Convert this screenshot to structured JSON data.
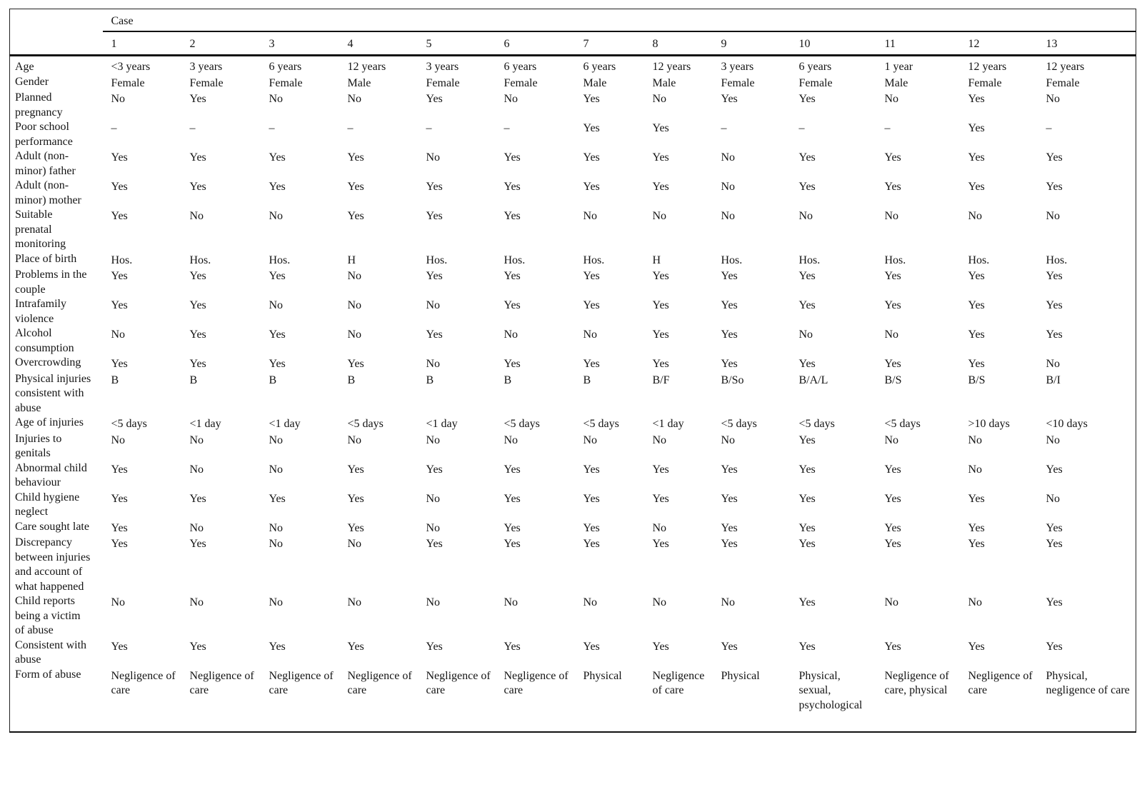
{
  "table": {
    "col_group_label": "Case",
    "case_numbers": [
      "1",
      "2",
      "3",
      "4",
      "5",
      "6",
      "7",
      "8",
      "9",
      "10",
      "11",
      "12",
      "13"
    ],
    "rows": [
      {
        "label": "Age",
        "values": [
          "<3 years",
          "3 years",
          "6 years",
          "12 years",
          "3 years",
          "6 years",
          "6 years",
          "12 years",
          "3 years",
          "6 years",
          "1 year",
          "12 years",
          "12 years"
        ]
      },
      {
        "label": "Gender",
        "values": [
          "Female",
          "Female",
          "Female",
          "Male",
          "Female",
          "Female",
          "Male",
          "Male",
          "Female",
          "Female",
          "Male",
          "Female",
          "Female"
        ]
      },
      {
        "label": "Planned pregnancy",
        "values": [
          "No",
          "Yes",
          "No",
          "No",
          "Yes",
          "No",
          "Yes",
          "No",
          "Yes",
          "Yes",
          "No",
          "Yes",
          "No"
        ]
      },
      {
        "label": "Poor school performance",
        "values": [
          "–",
          "–",
          "–",
          "–",
          "–",
          "–",
          "Yes",
          "Yes",
          "–",
          "–",
          "–",
          "Yes",
          "–"
        ]
      },
      {
        "label": "Adult (non-minor) father",
        "values": [
          "Yes",
          "Yes",
          "Yes",
          "Yes",
          "No",
          "Yes",
          "Yes",
          "Yes",
          "No",
          "Yes",
          "Yes",
          "Yes",
          "Yes"
        ]
      },
      {
        "label": "Adult (non-minor) mother",
        "values": [
          "Yes",
          "Yes",
          "Yes",
          "Yes",
          "Yes",
          "Yes",
          "Yes",
          "Yes",
          "No",
          "Yes",
          "Yes",
          "Yes",
          "Yes"
        ]
      },
      {
        "label": "Suitable prenatal monitoring",
        "values": [
          "Yes",
          "No",
          "No",
          "Yes",
          "Yes",
          "Yes",
          "No",
          "No",
          "No",
          "No",
          "No",
          "No",
          "No"
        ]
      },
      {
        "label": "Place of birth",
        "values": [
          "Hos.",
          "Hos.",
          "Hos.",
          "H",
          "Hos.",
          "Hos.",
          "Hos.",
          "H",
          "Hos.",
          "Hos.",
          "Hos.",
          "Hos.",
          "Hos."
        ]
      },
      {
        "label": "Problems in the couple",
        "values": [
          "Yes",
          "Yes",
          "Yes",
          "No",
          "Yes",
          "Yes",
          "Yes",
          "Yes",
          "Yes",
          "Yes",
          "Yes",
          "Yes",
          "Yes"
        ]
      },
      {
        "label": "Intrafamily violence",
        "values": [
          "Yes",
          "Yes",
          "No",
          "No",
          "No",
          "Yes",
          "Yes",
          "Yes",
          "Yes",
          "Yes",
          "Yes",
          "Yes",
          "Yes"
        ]
      },
      {
        "label": "Alcohol consumption",
        "values": [
          "No",
          "Yes",
          "Yes",
          "No",
          "Yes",
          "No",
          "No",
          "Yes",
          "Yes",
          "No",
          "No",
          "Yes",
          "Yes"
        ]
      },
      {
        "label": "Overcrowding",
        "values": [
          "Yes",
          "Yes",
          "Yes",
          "Yes",
          "No",
          "Yes",
          "Yes",
          "Yes",
          "Yes",
          "Yes",
          "Yes",
          "Yes",
          "No"
        ]
      },
      {
        "label": "Physical injuries consistent with abuse",
        "values": [
          "B",
          "B",
          "B",
          "B",
          "B",
          "B",
          "B",
          "B/F",
          "B/So",
          "B/A/L",
          "B/S",
          "B/S",
          "B/I"
        ]
      },
      {
        "label": "Age of injuries",
        "values": [
          "<5 days",
          "<1 day",
          "<1 day",
          "<5 days",
          "<1 day",
          "<5 days",
          "<5 days",
          "<1 day",
          "<5 days",
          "<5 days",
          "<5 days",
          ">10 days",
          "<10 days"
        ]
      },
      {
        "label": "Injuries to genitals",
        "values": [
          "No",
          "No",
          "No",
          "No",
          "No",
          "No",
          "No",
          "No",
          "No",
          "Yes",
          "No",
          "No",
          "No"
        ]
      },
      {
        "label": "Abnormal child behaviour",
        "values": [
          "Yes",
          "No",
          "No",
          "Yes",
          "Yes",
          "Yes",
          "Yes",
          "Yes",
          "Yes",
          "Yes",
          "Yes",
          "No",
          "Yes"
        ]
      },
      {
        "label": "Child hygiene neglect",
        "values": [
          "Yes",
          "Yes",
          "Yes",
          "Yes",
          "No",
          "Yes",
          "Yes",
          "Yes",
          "Yes",
          "Yes",
          "Yes",
          "Yes",
          "No"
        ]
      },
      {
        "label": "Care sought late",
        "values": [
          "Yes",
          "No",
          "No",
          "Yes",
          "No",
          "Yes",
          "Yes",
          "No",
          "Yes",
          "Yes",
          "Yes",
          "Yes",
          "Yes"
        ]
      },
      {
        "label": "Discrepancy between injuries and account of what happened",
        "values": [
          "Yes",
          "Yes",
          "No",
          "No",
          "Yes",
          "Yes",
          "Yes",
          "Yes",
          "Yes",
          "Yes",
          "Yes",
          "Yes",
          "Yes"
        ]
      },
      {
        "label": "Child reports being a victim of abuse",
        "values": [
          "No",
          "No",
          "No",
          "No",
          "No",
          "No",
          "No",
          "No",
          "No",
          "Yes",
          "No",
          "No",
          "Yes"
        ]
      },
      {
        "label": "Consistent with abuse",
        "values": [
          "Yes",
          "Yes",
          "Yes",
          "Yes",
          "Yes",
          "Yes",
          "Yes",
          "Yes",
          "Yes",
          "Yes",
          "Yes",
          "Yes",
          "Yes"
        ]
      },
      {
        "label": "Form of abuse",
        "values": [
          "Negligence of care",
          "Negligence of care",
          "Negligence of care",
          "Negligence of care",
          "Negligence of care",
          "Negligence of care",
          "Physical",
          "Negligence of care",
          "Physical",
          "Physical, sexual, psychological",
          "Negligence of care, physical",
          "Negligence of care",
          "Physical, negligence of care"
        ]
      }
    ]
  }
}
